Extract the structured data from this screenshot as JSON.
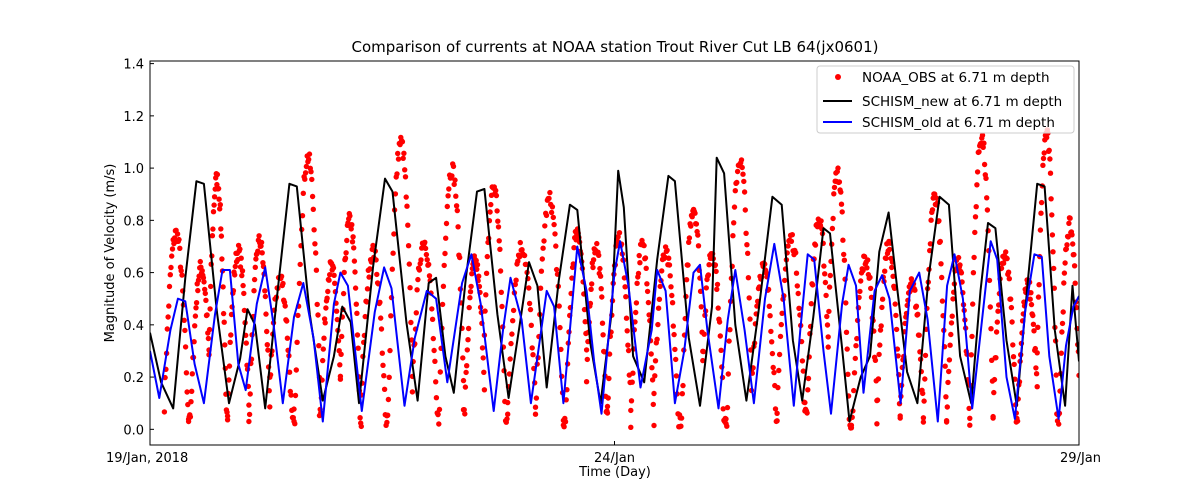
{
  "chart_data": {
    "type": "line",
    "title": "Comparison of currents at NOAA station Trout River Cut LB 64(jx0601)",
    "xlabel": "Time (Day)",
    "ylabel": "Magnitude of Velocity (m/s)",
    "xlim": [
      0,
      10
    ],
    "ylim": [
      -0.06,
      1.41
    ],
    "grid": false,
    "legend_position": "top-right",
    "x_ticks": [
      {
        "value": 0,
        "label": "19/Jan, 2018"
      },
      {
        "value": 5,
        "label": "24/Jan"
      },
      {
        "value": 10,
        "label": "29/Jan"
      }
    ],
    "y_ticks": [
      {
        "value": 0.0,
        "label": "0.0"
      },
      {
        "value": 0.2,
        "label": "0.2"
      },
      {
        "value": 0.4,
        "label": "0.4"
      },
      {
        "value": 0.6,
        "label": "0.6"
      },
      {
        "value": 0.8,
        "label": "0.8"
      },
      {
        "value": 1.0,
        "label": "1.0"
      },
      {
        "value": 1.2,
        "label": "1.2"
      },
      {
        "value": 1.4,
        "label": "1.4"
      }
    ],
    "series": [
      {
        "name": "NOAA_OBS at 6.71 m depth",
        "kind": "scatter",
        "color": "#ff0000",
        "peaks": [
          [
            0.28,
            0.75
          ],
          [
            0.55,
            0.62
          ],
          [
            0.72,
            0.96
          ],
          [
            0.95,
            0.68
          ],
          [
            1.18,
            0.72
          ],
          [
            1.4,
            0.58
          ],
          [
            1.7,
            1.04
          ],
          [
            1.95,
            0.62
          ],
          [
            2.15,
            0.8
          ],
          [
            2.4,
            0.68
          ],
          [
            2.7,
            1.1
          ],
          [
            2.95,
            0.72
          ],
          [
            3.25,
            1.0
          ],
          [
            3.5,
            0.64
          ],
          [
            3.7,
            0.93
          ],
          [
            4.0,
            0.7
          ],
          [
            4.3,
            0.88
          ],
          [
            4.6,
            0.76
          ],
          [
            4.8,
            0.7
          ],
          [
            5.05,
            0.73
          ],
          [
            5.3,
            0.7
          ],
          [
            5.55,
            0.67
          ],
          [
            5.85,
            0.85
          ],
          [
            6.05,
            0.68
          ],
          [
            6.35,
            1.03
          ],
          [
            6.6,
            0.62
          ],
          [
            6.9,
            0.73
          ],
          [
            7.2,
            0.8
          ],
          [
            7.4,
            0.98
          ],
          [
            7.7,
            0.65
          ],
          [
            7.95,
            0.7
          ],
          [
            8.2,
            0.55
          ],
          [
            8.45,
            0.88
          ],
          [
            8.7,
            0.64
          ],
          [
            8.95,
            1.12
          ],
          [
            9.2,
            0.66
          ],
          [
            9.45,
            0.55
          ],
          [
            9.65,
            1.13
          ],
          [
            9.9,
            0.78
          ]
        ],
        "troughs": [
          0.04,
          0.06,
          0.05,
          0.08,
          0.03,
          0.02,
          0.05,
          0.07,
          0.03,
          0.01,
          0.04,
          0.05
        ]
      },
      {
        "name": "SCHISM_new at 6.71 m depth",
        "kind": "line",
        "color": "#000000",
        "points": [
          [
            0.0,
            0.37
          ],
          [
            0.12,
            0.18
          ],
          [
            0.25,
            0.08
          ],
          [
            0.38,
            0.58
          ],
          [
            0.5,
            0.95
          ],
          [
            0.58,
            0.94
          ],
          [
            0.72,
            0.45
          ],
          [
            0.85,
            0.1
          ],
          [
            0.97,
            0.27
          ],
          [
            1.05,
            0.46
          ],
          [
            1.13,
            0.4
          ],
          [
            1.24,
            0.08
          ],
          [
            1.38,
            0.55
          ],
          [
            1.5,
            0.94
          ],
          [
            1.58,
            0.93
          ],
          [
            1.72,
            0.44
          ],
          [
            1.86,
            0.11
          ],
          [
            1.98,
            0.28
          ],
          [
            2.07,
            0.47
          ],
          [
            2.16,
            0.41
          ],
          [
            2.25,
            0.1
          ],
          [
            2.4,
            0.62
          ],
          [
            2.53,
            0.96
          ],
          [
            2.61,
            0.91
          ],
          [
            2.76,
            0.41
          ],
          [
            2.88,
            0.11
          ],
          [
            3.0,
            0.56
          ],
          [
            3.08,
            0.58
          ],
          [
            3.18,
            0.28
          ],
          [
            3.27,
            0.14
          ],
          [
            3.4,
            0.58
          ],
          [
            3.52,
            0.91
          ],
          [
            3.6,
            0.92
          ],
          [
            3.74,
            0.44
          ],
          [
            3.86,
            0.12
          ],
          [
            3.98,
            0.4
          ],
          [
            4.08,
            0.64
          ],
          [
            4.17,
            0.55
          ],
          [
            4.27,
            0.16
          ],
          [
            4.4,
            0.57
          ],
          [
            4.52,
            0.86
          ],
          [
            4.6,
            0.84
          ],
          [
            4.74,
            0.33
          ],
          [
            4.85,
            0.1
          ],
          [
            4.97,
            0.45
          ],
          [
            5.04,
            0.99
          ],
          [
            5.1,
            0.85
          ],
          [
            5.2,
            0.28
          ],
          [
            5.32,
            0.18
          ],
          [
            5.46,
            0.65
          ],
          [
            5.58,
            0.97
          ],
          [
            5.65,
            0.95
          ],
          [
            5.8,
            0.35
          ],
          [
            5.92,
            0.09
          ],
          [
            6.05,
            0.47
          ],
          [
            6.1,
            1.04
          ],
          [
            6.18,
            0.98
          ],
          [
            6.3,
            0.4
          ],
          [
            6.42,
            0.11
          ],
          [
            6.55,
            0.45
          ],
          [
            6.7,
            0.89
          ],
          [
            6.8,
            0.86
          ],
          [
            6.92,
            0.34
          ],
          [
            7.02,
            0.11
          ],
          [
            7.14,
            0.43
          ],
          [
            7.25,
            0.77
          ],
          [
            7.32,
            0.75
          ],
          [
            7.45,
            0.31
          ],
          [
            7.53,
            0.03
          ],
          [
            7.65,
            0.2
          ],
          [
            7.75,
            0.28
          ],
          [
            7.85,
            0.68
          ],
          [
            7.95,
            0.83
          ],
          [
            8.05,
            0.52
          ],
          [
            8.15,
            0.22
          ],
          [
            8.26,
            0.1
          ],
          [
            8.38,
            0.58
          ],
          [
            8.5,
            0.89
          ],
          [
            8.6,
            0.86
          ],
          [
            8.72,
            0.28
          ],
          [
            8.84,
            0.1
          ],
          [
            8.94,
            0.53
          ],
          [
            9.02,
            0.79
          ],
          [
            9.1,
            0.77
          ],
          [
            9.22,
            0.34
          ],
          [
            9.33,
            0.09
          ],
          [
            9.45,
            0.57
          ],
          [
            9.55,
            0.94
          ],
          [
            9.63,
            0.93
          ],
          [
            9.74,
            0.38
          ],
          [
            9.85,
            0.09
          ],
          [
            9.93,
            0.55
          ],
          [
            10.0,
            0.26
          ]
        ]
      },
      {
        "name": "SCHISM_old at 6.71 m depth",
        "kind": "line",
        "color": "#0000ff",
        "points": [
          [
            0.0,
            0.3
          ],
          [
            0.1,
            0.12
          ],
          [
            0.22,
            0.38
          ],
          [
            0.3,
            0.5
          ],
          [
            0.38,
            0.49
          ],
          [
            0.48,
            0.25
          ],
          [
            0.58,
            0.1
          ],
          [
            0.7,
            0.44
          ],
          [
            0.78,
            0.61
          ],
          [
            0.86,
            0.61
          ],
          [
            0.95,
            0.25
          ],
          [
            1.03,
            0.15
          ],
          [
            1.15,
            0.48
          ],
          [
            1.24,
            0.62
          ],
          [
            1.33,
            0.4
          ],
          [
            1.43,
            0.1
          ],
          [
            1.55,
            0.43
          ],
          [
            1.65,
            0.56
          ],
          [
            1.76,
            0.35
          ],
          [
            1.86,
            0.03
          ],
          [
            1.98,
            0.48
          ],
          [
            2.05,
            0.6
          ],
          [
            2.13,
            0.55
          ],
          [
            2.28,
            0.07
          ],
          [
            2.42,
            0.45
          ],
          [
            2.52,
            0.62
          ],
          [
            2.6,
            0.54
          ],
          [
            2.74,
            0.09
          ],
          [
            2.85,
            0.35
          ],
          [
            2.98,
            0.53
          ],
          [
            3.08,
            0.5
          ],
          [
            3.2,
            0.18
          ],
          [
            3.36,
            0.56
          ],
          [
            3.46,
            0.67
          ],
          [
            3.56,
            0.48
          ],
          [
            3.7,
            0.07
          ],
          [
            3.8,
            0.38
          ],
          [
            3.88,
            0.58
          ],
          [
            4.0,
            0.42
          ],
          [
            4.1,
            0.1
          ],
          [
            4.18,
            0.3
          ],
          [
            4.27,
            0.53
          ],
          [
            4.35,
            0.47
          ],
          [
            4.45,
            0.1
          ],
          [
            4.6,
            0.7
          ],
          [
            4.7,
            0.53
          ],
          [
            4.78,
            0.26
          ],
          [
            4.86,
            0.06
          ],
          [
            5.0,
            0.6
          ],
          [
            5.06,
            0.72
          ],
          [
            5.15,
            0.55
          ],
          [
            5.28,
            0.16
          ],
          [
            5.4,
            0.38
          ],
          [
            5.46,
            0.61
          ],
          [
            5.55,
            0.53
          ],
          [
            5.65,
            0.1
          ],
          [
            5.75,
            0.3
          ],
          [
            5.85,
            0.6
          ],
          [
            5.92,
            0.63
          ],
          [
            6.0,
            0.38
          ],
          [
            6.12,
            0.08
          ],
          [
            6.22,
            0.42
          ],
          [
            6.3,
            0.61
          ],
          [
            6.4,
            0.38
          ],
          [
            6.5,
            0.1
          ],
          [
            6.62,
            0.5
          ],
          [
            6.72,
            0.71
          ],
          [
            6.82,
            0.5
          ],
          [
            6.93,
            0.09
          ],
          [
            7.0,
            0.38
          ],
          [
            7.08,
            0.67
          ],
          [
            7.15,
            0.65
          ],
          [
            7.25,
            0.3
          ],
          [
            7.33,
            0.06
          ],
          [
            7.45,
            0.48
          ],
          [
            7.52,
            0.63
          ],
          [
            7.6,
            0.55
          ],
          [
            7.68,
            0.14
          ],
          [
            7.8,
            0.53
          ],
          [
            7.88,
            0.59
          ],
          [
            7.96,
            0.5
          ],
          [
            8.08,
            0.1
          ],
          [
            8.18,
            0.53
          ],
          [
            8.28,
            0.6
          ],
          [
            8.37,
            0.42
          ],
          [
            8.48,
            0.03
          ],
          [
            8.58,
            0.55
          ],
          [
            8.66,
            0.67
          ],
          [
            8.75,
            0.5
          ],
          [
            8.85,
            0.08
          ],
          [
            8.95,
            0.4
          ],
          [
            9.05,
            0.72
          ],
          [
            9.12,
            0.65
          ],
          [
            9.22,
            0.2
          ],
          [
            9.31,
            0.04
          ],
          [
            9.42,
            0.45
          ],
          [
            9.52,
            0.67
          ],
          [
            9.6,
            0.66
          ],
          [
            9.68,
            0.28
          ],
          [
            9.78,
            0.04
          ],
          [
            9.86,
            0.32
          ],
          [
            9.94,
            0.47
          ],
          [
            10.0,
            0.51
          ]
        ]
      }
    ]
  }
}
